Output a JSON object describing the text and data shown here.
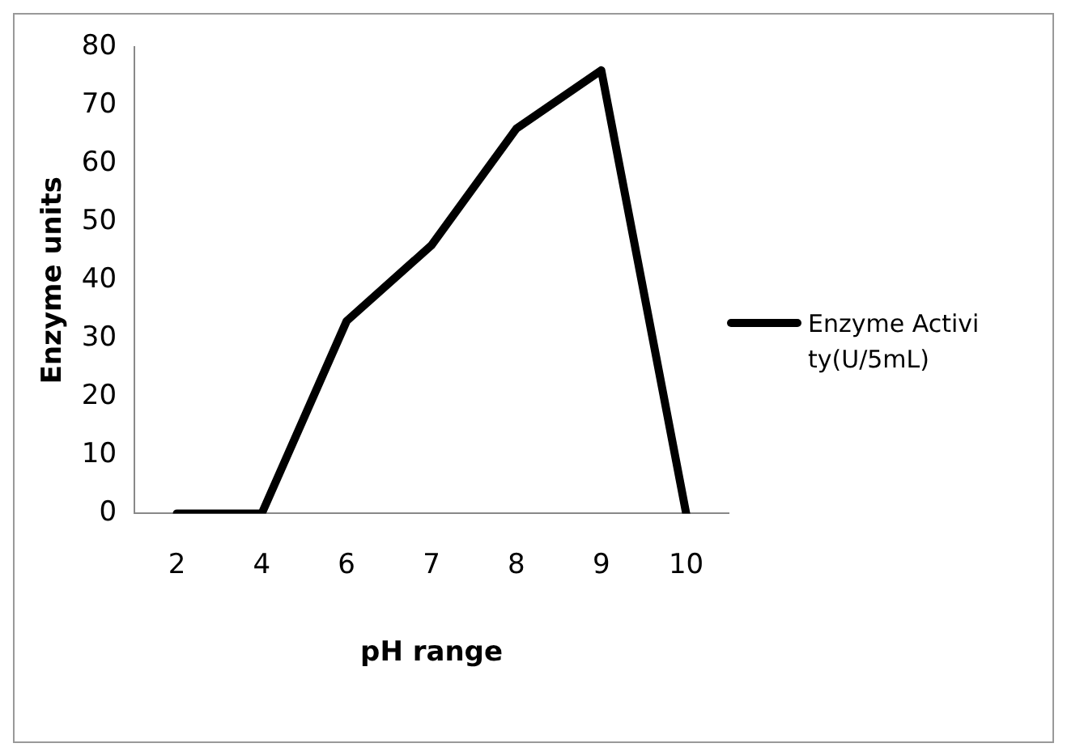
{
  "chart_data": {
    "type": "line",
    "xlabel": "pH range",
    "ylabel": "Enzyme units",
    "categories": [
      "2",
      "4",
      "6",
      "7",
      "8",
      "9",
      "10"
    ],
    "series": [
      {
        "name": "Enzyme Activity(U/5mL)",
        "color": "#000000",
        "values": [
          0,
          0,
          33,
          46,
          66,
          76,
          0
        ]
      }
    ],
    "ylim": [
      0,
      80
    ],
    "yticks": [
      0,
      10,
      20,
      30,
      40,
      50,
      60,
      70,
      80
    ],
    "grid": false,
    "legend": "right",
    "marker": "none"
  }
}
